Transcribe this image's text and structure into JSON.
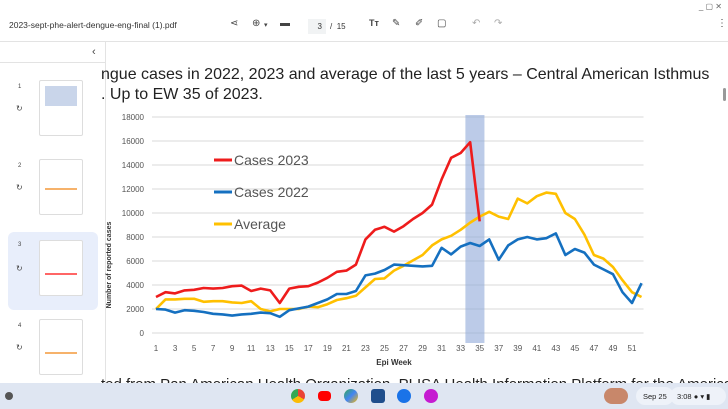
{
  "toolbar": {
    "filename": "2023-sept-phe-alert-dengue-eng-final (1).pdf",
    "page_current": "3",
    "page_sep": "/",
    "page_total": "15",
    "icons": [
      "share-icon",
      "zoom-icon",
      "chevron-down-icon",
      "print-icon",
      "text-size-icon",
      "annotate-icon",
      "highlighter-icon",
      "crop-icon",
      "undo-icon",
      "redo-icon",
      "more-vert-icon"
    ],
    "window_controls": "_ ▢ ✕"
  },
  "sidebar": {
    "collapse": "‹",
    "thumbnails": [
      {
        "num": "1"
      },
      {
        "num": "2"
      },
      {
        "num": "3",
        "selected": true
      },
      {
        "num": "4"
      }
    ]
  },
  "document": {
    "heading_line1": "ngue cases in 2022, 2023 and average of the last 5 years – Central American Isthmus",
    "heading_line2": ". Up to EW 35 of 2023.",
    "footer_text": "ted from Pan American Health Organization. PLISA Health Information Platform for the Americas"
  },
  "chart_data": {
    "type": "line",
    "xlabel": "Epi Week",
    "ylabel": "Number of reported cases",
    "ylim": [
      0,
      18000
    ],
    "yticks": [
      0,
      2000,
      4000,
      6000,
      8000,
      10000,
      12000,
      14000,
      16000,
      18000
    ],
    "xlim": [
      1,
      52
    ],
    "xticks": [
      1,
      3,
      5,
      7,
      9,
      11,
      13,
      15,
      17,
      19,
      21,
      23,
      25,
      27,
      29,
      31,
      33,
      35,
      37,
      39,
      41,
      43,
      45,
      47,
      49,
      51
    ],
    "grid": true,
    "legend": "top-left",
    "highlight": {
      "from_week": 34,
      "to_week": 35,
      "color": "#8fa8d8"
    },
    "series": [
      {
        "name": "Cases 2023",
        "color": "#ee1c1c",
        "values": [
          3000,
          3400,
          3300,
          3550,
          3600,
          3750,
          3700,
          3750,
          3900,
          3950,
          3500,
          3700,
          3550,
          2500,
          3700,
          3850,
          3900,
          4200,
          4600,
          5100,
          5200,
          5700,
          7800,
          8600,
          8850,
          8450,
          8900,
          9500,
          10000,
          10700,
          12800,
          14600,
          15000,
          15900,
          9300
        ]
      },
      {
        "name": "Cases 2022",
        "color": "#1570c0",
        "values": [
          2000,
          1950,
          1700,
          1900,
          1850,
          1750,
          1600,
          1550,
          1450,
          1550,
          1600,
          1700,
          1650,
          1350,
          1900,
          2050,
          2200,
          2500,
          2800,
          3250,
          3250,
          3500,
          4800,
          4950,
          5250,
          5700,
          5650,
          5600,
          5550,
          5600,
          7100,
          6550,
          7200,
          7500,
          7250,
          7800,
          6100,
          7300,
          7800,
          8000,
          7800,
          7900,
          8300,
          6500,
          7000,
          6700,
          5700,
          5300,
          4900,
          3400,
          2500,
          4150
        ]
      },
      {
        "name": "Average",
        "color": "#ffc000",
        "values": [
          2000,
          2800,
          2800,
          2850,
          2850,
          2600,
          2650,
          2650,
          2550,
          2500,
          2650,
          2000,
          1800,
          2000,
          2000,
          2000,
          2200,
          2150,
          2400,
          2750,
          2900,
          3100,
          3800,
          4500,
          4550,
          5200,
          5600,
          6050,
          6500,
          7300,
          7800,
          8100,
          8600,
          9200,
          9700,
          10100,
          9700,
          9500,
          11200,
          10800,
          11400,
          11700,
          11600,
          10000,
          9500,
          8200,
          6500,
          6200,
          5500,
          4400,
          3400,
          3000
        ]
      }
    ]
  },
  "taskbar": {
    "date": "Sep 25",
    "time": "3:08"
  }
}
